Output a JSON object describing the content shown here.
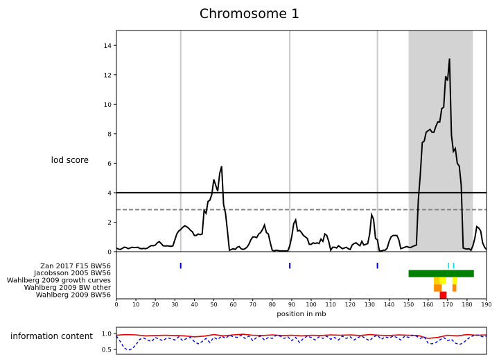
{
  "chart_data": [
    {
      "type": "line",
      "panel": "lod",
      "title": "Chromosome 1",
      "ylabel": "lod score",
      "xlim": [
        0,
        190
      ],
      "ylim": [
        0,
        15
      ],
      "yticks": [
        0,
        2,
        4,
        6,
        8,
        10,
        12,
        14
      ],
      "grid": false,
      "highlight_region": [
        150,
        183
      ],
      "highlight_color": "#d3d3d3",
      "vertical_markers": [
        33,
        89,
        134
      ],
      "thresholds": [
        {
          "value": 4.0,
          "style": "solid",
          "color": "#000000"
        },
        {
          "value": 2.85,
          "style": "dashed",
          "color": "#808080"
        }
      ],
      "series": [
        {
          "color": "#000000",
          "x": [
            0,
            1,
            2,
            3,
            4,
            5,
            6,
            7,
            8,
            9,
            10,
            11,
            12,
            13,
            14,
            15,
            16,
            17,
            18,
            19,
            20,
            21,
            22,
            23,
            24,
            25,
            26,
            27,
            28,
            29,
            30,
            31,
            32,
            33,
            34,
            35,
            36,
            37,
            38,
            39,
            40,
            41,
            42,
            43,
            44,
            45,
            46,
            47,
            48,
            49,
            50,
            51,
            52,
            53,
            54,
            55,
            56,
            57,
            58,
            59,
            60,
            61,
            62,
            63,
            64,
            65,
            66,
            67,
            68,
            69,
            70,
            71,
            72,
            73,
            74,
            75,
            76,
            77,
            78,
            79,
            80,
            81,
            82,
            83,
            84,
            85,
            86,
            87,
            88,
            89,
            90,
            91,
            92,
            93,
            94,
            95,
            96,
            97,
            98,
            99,
            100,
            101,
            102,
            103,
            104,
            105,
            106,
            107,
            108,
            109,
            110,
            111,
            112,
            113,
            114,
            115,
            116,
            117,
            118,
            119,
            120,
            121,
            122,
            123,
            124,
            125,
            126,
            127,
            128,
            129,
            130,
            131,
            132,
            133,
            134,
            135,
            136,
            137,
            138,
            139,
            140,
            141,
            142,
            143,
            144,
            145,
            146,
            147,
            148,
            149,
            150,
            151,
            152,
            153,
            154,
            155,
            156,
            157,
            158,
            159,
            160,
            161,
            162,
            163,
            164,
            165,
            166,
            167,
            168,
            169,
            170,
            171,
            172,
            173,
            174,
            175,
            176,
            177,
            178,
            179,
            180,
            181,
            182,
            183,
            184,
            185,
            186,
            187,
            188,
            189,
            190
          ],
          "y": [
            0.25,
            0.18,
            0.15,
            0.22,
            0.3,
            0.28,
            0.2,
            0.25,
            0.3,
            0.28,
            0.28,
            0.3,
            0.22,
            0.2,
            0.22,
            0.2,
            0.25,
            0.35,
            0.42,
            0.4,
            0.45,
            0.6,
            0.68,
            0.55,
            0.4,
            0.38,
            0.4,
            0.38,
            0.36,
            0.4,
            0.8,
            1.2,
            1.4,
            1.5,
            1.65,
            1.75,
            1.7,
            1.6,
            1.45,
            1.35,
            1.1,
            1.1,
            1.2,
            1.15,
            1.2,
            2.8,
            2.6,
            3.4,
            3.5,
            3.9,
            4.9,
            4.5,
            4.1,
            5.3,
            5.8,
            3.2,
            2.6,
            1.4,
            0.1,
            0.15,
            0.2,
            0.15,
            0.3,
            0.35,
            0.2,
            0.15,
            0.2,
            0.3,
            0.5,
            0.8,
            1.0,
            1.0,
            0.95,
            1.2,
            1.3,
            1.5,
            1.8,
            1.3,
            1.2,
            0.6,
            0.1,
            0.05,
            0.1,
            0.08,
            0.05,
            0.05,
            0.05,
            0.05,
            0.05,
            0.4,
            1.0,
            1.9,
            2.15,
            1.4,
            1.45,
            1.3,
            1.1,
            1.0,
            0.9,
            0.5,
            0.5,
            0.6,
            0.55,
            0.6,
            0.55,
            0.85,
            0.7,
            1.2,
            1.1,
            0.7,
            0.1,
            0.3,
            0.3,
            0.25,
            0.4,
            0.3,
            0.2,
            0.25,
            0.3,
            0.2,
            0.15,
            0.45,
            0.55,
            0.6,
            0.5,
            0.4,
            0.7,
            0.45,
            0.5,
            0.55,
            1.2,
            2.5,
            2.2,
            0.9,
            0.8,
            0.05,
            0.05,
            0.1,
            0.1,
            0.25,
            0.7,
            1.0,
            1.1,
            1.1,
            1.1,
            0.8,
            0.2,
            0.25,
            0.3,
            0.35,
            0.3,
            0.28,
            0.35,
            0.4,
            0.45,
            3.5,
            5.2,
            7.4,
            7.5,
            8.1,
            8.2,
            8.3,
            8.1,
            8.1,
            8.5,
            8.8,
            8.8,
            9.7,
            9.8,
            11.9,
            11.6,
            13.1,
            7.9,
            6.8,
            7.0,
            6.0,
            5.8,
            4.5,
            0.25,
            0.2,
            0.18,
            0.2,
            0.1,
            0.4,
            0.9,
            1.7,
            1.6,
            1.4,
            0.6,
            0.3,
            0.15
          ]
        }
      ]
    },
    {
      "type": "heatmap",
      "panel": "tracks",
      "xlabel": "position in mb",
      "xlim": [
        0,
        190
      ],
      "xticks": [
        0,
        10,
        20,
        30,
        40,
        50,
        60,
        70,
        80,
        90,
        100,
        110,
        120,
        130,
        140,
        150,
        160,
        170,
        180,
        190
      ],
      "tracks": [
        "Zan 2017 F15 BW56",
        "Jacobsson 2005 BW56",
        "Wahlberg 2009 growth curves",
        "Wahlberg 2009 BW other",
        "Wahlberg 2009 BW56"
      ],
      "vertical_markers": [
        33,
        89,
        134
      ],
      "segments": [
        {
          "track": 0,
          "x0": 170.2,
          "x1": 170.8,
          "color": "#00e5ff"
        },
        {
          "track": 0,
          "x0": 172.8,
          "x1": 173.4,
          "color": "#00e5ff"
        },
        {
          "track": 1,
          "x0": 150,
          "x1": 183.5,
          "color": "#008000"
        },
        {
          "track": 2,
          "x0": 163,
          "x1": 166,
          "color": "#ffd000"
        },
        {
          "track": 2,
          "x0": 166,
          "x1": 169,
          "color": "#ffff00"
        },
        {
          "track": 2,
          "x0": 172.5,
          "x1": 175,
          "color": "#ffff00"
        },
        {
          "track": 3,
          "x0": 163,
          "x1": 167,
          "color": "#ff8c00"
        },
        {
          "track": 3,
          "x0": 172.5,
          "x1": 174.5,
          "color": "#ff8c00"
        },
        {
          "track": 4,
          "x0": 166,
          "x1": 169.5,
          "color": "#ff0000"
        }
      ]
    },
    {
      "type": "line",
      "panel": "info",
      "ylabel": "information content",
      "xlim": [
        0,
        190
      ],
      "ylim": [
        0.35,
        1.2
      ],
      "yticks": [
        0.5,
        1.0
      ],
      "series": [
        {
          "color": "#e00000",
          "style": "solid",
          "x": [
            0,
            5,
            10,
            15,
            20,
            25,
            30,
            35,
            40,
            45,
            50,
            55,
            60,
            65,
            70,
            75,
            80,
            85,
            90,
            95,
            100,
            105,
            110,
            115,
            120,
            125,
            130,
            135,
            140,
            145,
            150,
            155,
            160,
            165,
            170,
            175,
            180,
            185,
            190
          ],
          "y": [
            0.95,
            0.97,
            0.96,
            0.93,
            0.94,
            0.95,
            0.94,
            0.93,
            0.9,
            0.92,
            0.97,
            0.93,
            0.96,
            0.98,
            0.95,
            0.94,
            0.96,
            0.94,
            0.95,
            0.93,
            0.95,
            0.94,
            0.96,
            0.95,
            0.96,
            0.94,
            0.97,
            0.95,
            0.94,
            0.96,
            0.95,
            0.94,
            0.85,
            0.88,
            0.95,
            0.93,
            0.97,
            0.95,
            0.96
          ]
        },
        {
          "color": "#0000dd",
          "style": "dashed",
          "x": [
            0,
            2,
            4,
            6,
            8,
            10,
            12,
            14,
            16,
            18,
            20,
            22,
            24,
            26,
            28,
            30,
            32,
            34,
            36,
            38,
            40,
            42,
            44,
            46,
            48,
            50,
            52,
            54,
            56,
            58,
            60,
            62,
            64,
            66,
            68,
            70,
            72,
            74,
            76,
            78,
            80,
            82,
            84,
            86,
            88,
            90,
            92,
            94,
            96,
            98,
            100,
            102,
            104,
            106,
            108,
            110,
            112,
            114,
            116,
            118,
            120,
            122,
            124,
            126,
            128,
            130,
            132,
            134,
            136,
            138,
            140,
            142,
            144,
            146,
            148,
            150,
            152,
            154,
            156,
            158,
            160,
            162,
            164,
            166,
            168,
            170,
            172,
            174,
            176,
            178,
            180,
            182,
            184,
            186,
            188,
            190
          ],
          "y": [
            0.92,
            0.75,
            0.55,
            0.48,
            0.52,
            0.65,
            0.82,
            0.86,
            0.8,
            0.75,
            0.88,
            0.82,
            0.78,
            0.87,
            0.84,
            0.8,
            0.9,
            0.78,
            0.85,
            0.88,
            0.75,
            0.68,
            0.75,
            0.85,
            0.72,
            0.88,
            0.82,
            0.92,
            0.85,
            0.95,
            0.9,
            0.88,
            0.95,
            0.85,
            0.92,
            0.78,
            0.88,
            0.92,
            0.8,
            0.88,
            0.85,
            0.95,
            0.92,
            0.85,
            0.9,
            0.78,
            0.88,
            0.72,
            0.85,
            0.92,
            0.88,
            0.8,
            0.9,
            0.85,
            0.92,
            0.82,
            0.88,
            0.8,
            0.92,
            0.85,
            0.9,
            0.8,
            0.88,
            0.92,
            0.84,
            0.78,
            0.9,
            0.95,
            0.82,
            0.9,
            0.86,
            0.92,
            0.88,
            0.8,
            0.92,
            0.88,
            0.95,
            0.92,
            0.85,
            0.9,
            0.7,
            0.68,
            0.72,
            0.8,
            0.88,
            0.78,
            0.82,
            0.7,
            0.66,
            0.7,
            0.82,
            0.9,
            0.96,
            0.95,
            0.9,
            0.92
          ]
        }
      ]
    }
  ]
}
